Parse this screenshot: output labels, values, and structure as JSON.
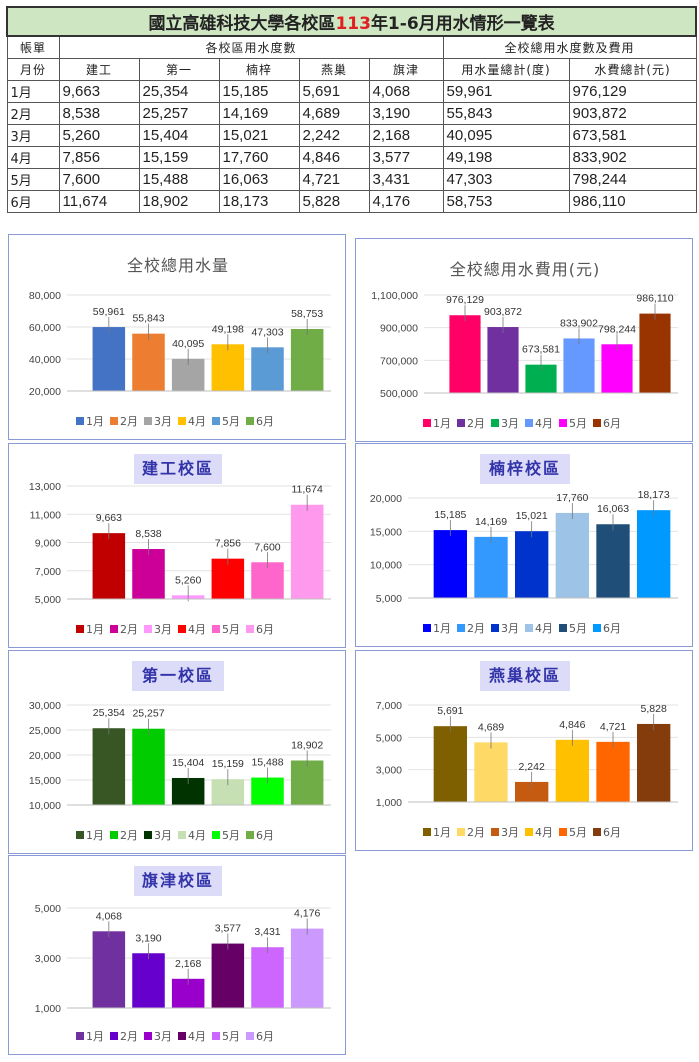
{
  "table": {
    "title_pre": "國立高雄科技大學各校區",
    "title_year": "113",
    "title_post": "年1-6月用水情形一覽表",
    "h_account": "帳單",
    "h_month": "月份",
    "h_usage_group": "各校區用水度數",
    "h_total_group": "全校總用水度數及費用",
    "campuses": [
      "建工",
      "第一",
      "楠梓",
      "燕巢",
      "旗津"
    ],
    "h_total_usage": "用水量總計(度)",
    "h_total_cost": "水費總計(元)",
    "rows": [
      {
        "month": "1月",
        "v": [
          "9,663",
          "25,354",
          "15,185",
          "5,691",
          "4,068"
        ],
        "usage": "59,961",
        "cost": "976,129"
      },
      {
        "month": "2月",
        "v": [
          "8,538",
          "25,257",
          "14,169",
          "4,689",
          "3,190"
        ],
        "usage": "55,843",
        "cost": "903,872"
      },
      {
        "month": "3月",
        "v": [
          "5,260",
          "15,404",
          "15,021",
          "2,242",
          "2,168"
        ],
        "usage": "40,095",
        "cost": "673,581"
      },
      {
        "month": "4月",
        "v": [
          "7,856",
          "15,159",
          "17,760",
          "4,846",
          "3,577"
        ],
        "usage": "49,198",
        "cost": "833,902"
      },
      {
        "month": "5月",
        "v": [
          "7,600",
          "15,488",
          "16,063",
          "4,721",
          "3,431"
        ],
        "usage": "47,303",
        "cost": "798,244"
      },
      {
        "month": "6月",
        "v": [
          "11,674",
          "18,902",
          "18,173",
          "5,828",
          "4,176"
        ],
        "usage": "58,753",
        "cost": "986,110"
      }
    ]
  },
  "chart_data": [
    {
      "type": "bar",
      "title": "全校總用水量",
      "categories": [
        "1月",
        "2月",
        "3月",
        "4月",
        "5月",
        "6月"
      ],
      "values": [
        59961,
        55843,
        40095,
        49198,
        47303,
        58753
      ],
      "labels": [
        "59,961",
        "55,843",
        "40,095",
        "49,198",
        "47,303",
        "58,753"
      ],
      "yticks": [
        "20,000",
        "40,000",
        "60,000",
        "80,000"
      ],
      "ylim": [
        20000,
        80000
      ],
      "colors": [
        "#4472c4",
        "#ed7d31",
        "#a5a5a5",
        "#ffc000",
        "#5b9bd5",
        "#70ad47"
      ],
      "legend": "bottom",
      "title_style": "plain"
    },
    {
      "type": "bar",
      "title": "全校總用水費用(元)",
      "categories": [
        "1月",
        "2月",
        "3月",
        "4月",
        "5月",
        "6月"
      ],
      "values": [
        976129,
        903872,
        673581,
        833902,
        798244,
        986110
      ],
      "labels": [
        "976,129",
        "903,872",
        "673,581",
        "833,902",
        "798,244",
        "986,110"
      ],
      "yticks": [
        "500,000",
        "700,000",
        "900,000",
        "1,100,000"
      ],
      "ylim": [
        500000,
        1100000
      ],
      "colors": [
        "#ff0066",
        "#7030a0",
        "#00b050",
        "#6699ff",
        "#ff00ff",
        "#993300"
      ],
      "legend": "bottom",
      "title_style": "plain"
    },
    {
      "type": "bar",
      "title": "建工校區",
      "categories": [
        "1月",
        "2月",
        "3月",
        "4月",
        "5月",
        "6月"
      ],
      "values": [
        9663,
        8538,
        5260,
        7856,
        7600,
        11674
      ],
      "labels": [
        "9,663",
        "8,538",
        "5,260",
        "7,856",
        "7,600",
        "11,674"
      ],
      "yticks": [
        "5,000",
        "7,000",
        "9,000",
        "11,000",
        "13,000"
      ],
      "ylim": [
        5000,
        13000
      ],
      "colors": [
        "#c00000",
        "#cc0099",
        "#ff99ff",
        "#ff0000",
        "#ff66cc",
        "#ff99ee"
      ],
      "legend": "bottom",
      "title_style": "badge"
    },
    {
      "type": "bar",
      "title": "楠梓校區",
      "categories": [
        "1月",
        "2月",
        "3月",
        "4月",
        "5月",
        "6月"
      ],
      "values": [
        15185,
        14169,
        15021,
        17760,
        16063,
        18173
      ],
      "labels": [
        "15,185",
        "14,169",
        "15,021",
        "17,760",
        "16,063",
        "18,173"
      ],
      "yticks": [
        "5,000",
        "10,000",
        "15,000",
        "20,000"
      ],
      "ylim": [
        5000,
        20000
      ],
      "colors": [
        "#0000ff",
        "#3399ff",
        "#0033cc",
        "#9dc3e6",
        "#1f4e79",
        "#0099ff"
      ],
      "legend": "bottom",
      "title_style": "badge"
    },
    {
      "type": "bar",
      "title": "第一校區",
      "categories": [
        "1月",
        "2月",
        "3月",
        "4月",
        "5月",
        "6月"
      ],
      "values": [
        25354,
        25257,
        15404,
        15159,
        15488,
        18902
      ],
      "labels": [
        "25,354",
        "25,257",
        "15,404",
        "15,159",
        "15,488",
        "18,902"
      ],
      "yticks": [
        "10,000",
        "15,000",
        "20,000",
        "25,000",
        "30,000"
      ],
      "ylim": [
        10000,
        30000
      ],
      "colors": [
        "#375623",
        "#00cc00",
        "#003300",
        "#c6e0b4",
        "#00ff00",
        "#70ad47"
      ],
      "legend": "bottom",
      "title_style": "badge"
    },
    {
      "type": "bar",
      "title": "燕巢校區",
      "categories": [
        "1月",
        "2月",
        "3月",
        "4月",
        "5月",
        "6月"
      ],
      "values": [
        5691,
        4689,
        2242,
        4846,
        4721,
        5828
      ],
      "labels": [
        "5,691",
        "4,689",
        "2,242",
        "4,846",
        "4,721",
        "5,828"
      ],
      "yticks": [
        "1,000",
        "3,000",
        "5,000",
        "7,000"
      ],
      "ylim": [
        1000,
        7000
      ],
      "colors": [
        "#7f6000",
        "#ffd966",
        "#c55a11",
        "#ffc000",
        "#ff6600",
        "#843c0c"
      ],
      "legend": "bottom",
      "title_style": "badge"
    },
    {
      "type": "bar",
      "title": "旗津校區",
      "categories": [
        "1月",
        "2月",
        "3月",
        "4月",
        "5月",
        "6月"
      ],
      "values": [
        4068,
        3190,
        2168,
        3577,
        3431,
        4176
      ],
      "labels": [
        "4,068",
        "3,190",
        "2,168",
        "3,577",
        "3,431",
        "4,176"
      ],
      "yticks": [
        "1,000",
        "3,000",
        "5,000"
      ],
      "ylim": [
        1000,
        5000
      ],
      "colors": [
        "#7030a0",
        "#6600cc",
        "#9900cc",
        "#660066",
        "#cc66ff",
        "#cc99ff"
      ],
      "legend": "bottom",
      "title_style": "badge"
    }
  ]
}
